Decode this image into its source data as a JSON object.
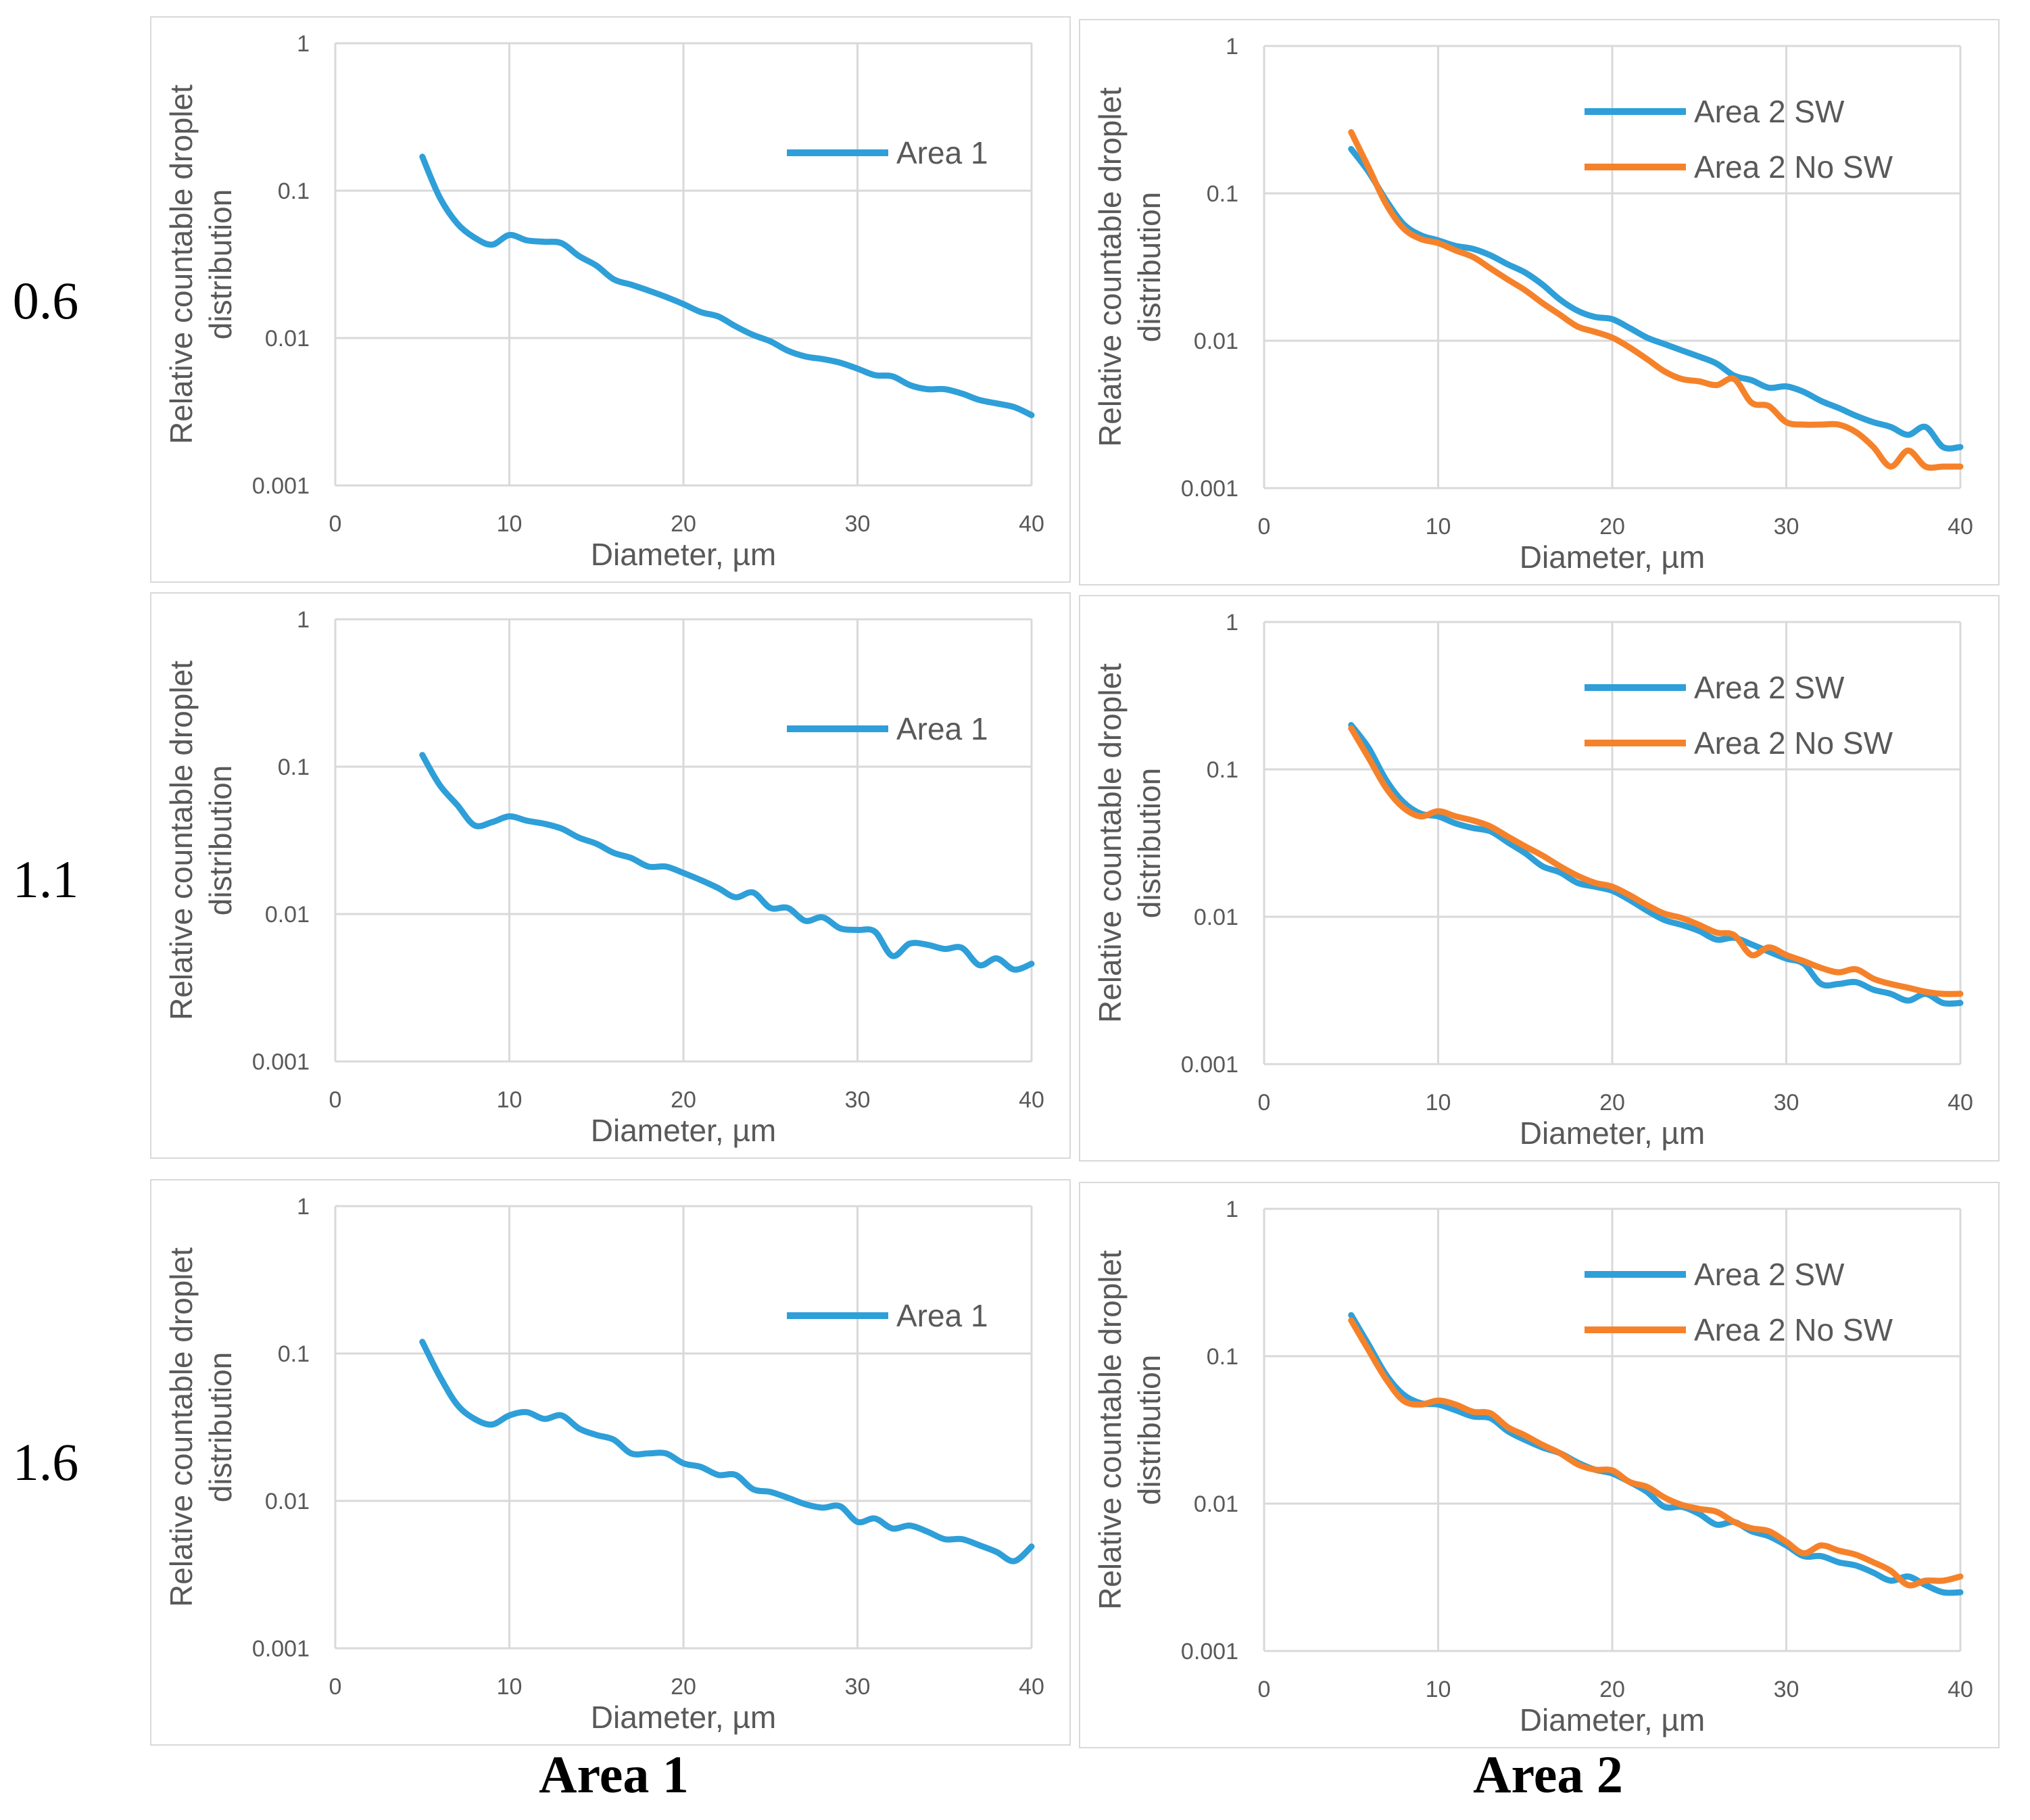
{
  "row_labels": [
    "0.6",
    "1.1",
    "1.6"
  ],
  "column_labels": [
    "Area 1",
    "Area 2"
  ],
  "colors": {
    "area1": "#2e9fd8",
    "area2_sw": "#2e9fd8",
    "area2_nosw": "#f5822a",
    "grid": "#d9d9d9"
  },
  "chart_data": [
    {
      "id": "r0c0",
      "type": "line",
      "xlabel": "Diameter, µm",
      "ylabel": "Relative countable droplet distribution",
      "xlim": [
        0,
        40
      ],
      "ylim": [
        0.001,
        1
      ],
      "yscale": "log",
      "xticks": [
        "0",
        "10",
        "20",
        "30",
        "40"
      ],
      "yticks": [
        "1",
        "0.1",
        "0.01",
        "0.001"
      ],
      "legend_position": "top-right",
      "series": [
        {
          "name": "Area 1",
          "x": [
            5,
            6,
            7,
            8,
            9,
            10,
            11,
            12,
            13,
            14,
            15,
            16,
            17,
            18,
            19,
            20,
            21,
            22,
            23,
            24,
            25,
            26,
            27,
            28,
            29,
            30,
            31,
            32,
            33,
            34,
            35,
            36,
            37,
            38,
            39,
            40
          ],
          "values": [
            0.17,
            0.09,
            0.06,
            0.048,
            0.043,
            0.05,
            0.046,
            0.045,
            0.044,
            0.036,
            0.031,
            0.025,
            0.023,
            0.021,
            0.019,
            0.017,
            0.015,
            0.014,
            0.012,
            0.0105,
            0.0095,
            0.0082,
            0.0075,
            0.0072,
            0.0068,
            0.0062,
            0.0056,
            0.0055,
            0.0048,
            0.0045,
            0.0045,
            0.0042,
            0.0038,
            0.0036,
            0.0034,
            0.003
          ]
        }
      ]
    },
    {
      "id": "r0c1",
      "type": "line",
      "xlabel": "Diameter, µm",
      "ylabel": "Relative countable droplet distribution",
      "xlim": [
        0,
        40
      ],
      "ylim": [
        0.001,
        1
      ],
      "yscale": "log",
      "xticks": [
        "0",
        "10",
        "20",
        "30",
        "40"
      ],
      "yticks": [
        "1",
        "0.1",
        "0.01",
        "0.001"
      ],
      "legend_position": "top-right",
      "series": [
        {
          "name": "Area 2 SW",
          "x": [
            5,
            6,
            7,
            8,
            9,
            10,
            11,
            12,
            13,
            14,
            15,
            16,
            17,
            18,
            19,
            20,
            21,
            22,
            23,
            24,
            25,
            26,
            27,
            28,
            29,
            30,
            31,
            32,
            33,
            34,
            35,
            36,
            37,
            38,
            39,
            40
          ],
          "values": [
            0.2,
            0.14,
            0.09,
            0.062,
            0.052,
            0.048,
            0.044,
            0.042,
            0.038,
            0.033,
            0.029,
            0.024,
            0.019,
            0.016,
            0.0145,
            0.014,
            0.0122,
            0.0105,
            0.0095,
            0.0086,
            0.0078,
            0.007,
            0.0058,
            0.0054,
            0.0048,
            0.0049,
            0.0045,
            0.0039,
            0.0035,
            0.0031,
            0.0028,
            0.0026,
            0.0023,
            0.0026,
            0.0019,
            0.0019
          ]
        },
        {
          "name": "Area 2 No SW",
          "x": [
            5,
            6,
            7,
            8,
            9,
            10,
            11,
            12,
            13,
            14,
            15,
            16,
            17,
            18,
            19,
            20,
            21,
            22,
            23,
            24,
            25,
            26,
            27,
            28,
            29,
            30,
            31,
            32,
            33,
            34,
            35,
            36,
            37,
            38,
            39,
            40
          ],
          "values": [
            0.26,
            0.15,
            0.085,
            0.058,
            0.049,
            0.046,
            0.041,
            0.037,
            0.031,
            0.026,
            0.022,
            0.018,
            0.015,
            0.0125,
            0.0115,
            0.0105,
            0.009,
            0.0075,
            0.0062,
            0.0055,
            0.0053,
            0.005,
            0.0055,
            0.0038,
            0.0036,
            0.0028,
            0.0027,
            0.0027,
            0.0027,
            0.0024,
            0.0019,
            0.0014,
            0.0018,
            0.0014,
            0.0014,
            0.0014
          ]
        }
      ]
    },
    {
      "id": "r1c0",
      "type": "line",
      "xlabel": "Diameter, µm",
      "ylabel": "Relative countable droplet distribution",
      "xlim": [
        0,
        40
      ],
      "ylim": [
        0.001,
        1
      ],
      "yscale": "log",
      "xticks": [
        "0",
        "10",
        "20",
        "30",
        "40"
      ],
      "yticks": [
        "1",
        "0.1",
        "0.01",
        "0.001"
      ],
      "legend_position": "top-right",
      "series": [
        {
          "name": "Area 1",
          "x": [
            5,
            6,
            7,
            8,
            9,
            10,
            11,
            12,
            13,
            14,
            15,
            16,
            17,
            18,
            19,
            20,
            21,
            22,
            23,
            24,
            25,
            26,
            27,
            28,
            29,
            30,
            31,
            32,
            33,
            34,
            35,
            36,
            37,
            38,
            39,
            40
          ],
          "values": [
            0.12,
            0.075,
            0.055,
            0.04,
            0.042,
            0.046,
            0.043,
            0.041,
            0.038,
            0.033,
            0.03,
            0.026,
            0.024,
            0.021,
            0.021,
            0.019,
            0.017,
            0.015,
            0.013,
            0.014,
            0.011,
            0.011,
            0.009,
            0.0095,
            0.008,
            0.0078,
            0.0076,
            0.0052,
            0.0063,
            0.0062,
            0.0058,
            0.0059,
            0.0045,
            0.005,
            0.0042,
            0.0046
          ]
        }
      ]
    },
    {
      "id": "r1c1",
      "type": "line",
      "xlabel": "Diameter, µm",
      "ylabel": "Relative countable droplet distribution",
      "xlim": [
        0,
        40
      ],
      "ylim": [
        0.001,
        1
      ],
      "yscale": "log",
      "xticks": [
        "0",
        "10",
        "20",
        "30",
        "40"
      ],
      "yticks": [
        "1",
        "0.1",
        "0.01",
        "0.001"
      ],
      "legend_position": "top-right",
      "series": [
        {
          "name": "Area 2 SW",
          "x": [
            5,
            6,
            7,
            8,
            9,
            10,
            11,
            12,
            13,
            14,
            15,
            16,
            17,
            18,
            19,
            20,
            21,
            22,
            23,
            24,
            25,
            26,
            27,
            28,
            29,
            30,
            31,
            32,
            33,
            34,
            35,
            36,
            37,
            38,
            39,
            40
          ],
          "values": [
            0.2,
            0.14,
            0.085,
            0.06,
            0.05,
            0.048,
            0.043,
            0.04,
            0.038,
            0.032,
            0.027,
            0.022,
            0.02,
            0.017,
            0.016,
            0.015,
            0.013,
            0.011,
            0.0095,
            0.0088,
            0.008,
            0.007,
            0.0072,
            0.0065,
            0.0058,
            0.0052,
            0.0048,
            0.0035,
            0.0035,
            0.0036,
            0.0032,
            0.003,
            0.0027,
            0.003,
            0.0026,
            0.0026
          ]
        },
        {
          "name": "Area 2 No SW",
          "x": [
            5,
            6,
            7,
            8,
            9,
            10,
            11,
            12,
            13,
            14,
            15,
            16,
            17,
            18,
            19,
            20,
            21,
            22,
            23,
            24,
            25,
            26,
            27,
            28,
            29,
            30,
            31,
            32,
            33,
            34,
            35,
            36,
            37,
            38,
            39,
            40
          ],
          "values": [
            0.19,
            0.12,
            0.075,
            0.055,
            0.048,
            0.052,
            0.048,
            0.045,
            0.041,
            0.035,
            0.03,
            0.026,
            0.022,
            0.019,
            0.017,
            0.016,
            0.014,
            0.012,
            0.0105,
            0.0098,
            0.0088,
            0.0078,
            0.0075,
            0.0055,
            0.0062,
            0.0055,
            0.005,
            0.0045,
            0.0042,
            0.0044,
            0.0038,
            0.0035,
            0.0033,
            0.0031,
            0.003,
            0.003
          ]
        }
      ]
    },
    {
      "id": "r2c0",
      "type": "line",
      "xlabel": "Diameter, µm",
      "ylabel": "Relative countable droplet distribution",
      "xlim": [
        0,
        40
      ],
      "ylim": [
        0.001,
        1
      ],
      "yscale": "log",
      "xticks": [
        "0",
        "10",
        "20",
        "30",
        "40"
      ],
      "yticks": [
        "1",
        "0.1",
        "0.01",
        "0.001"
      ],
      "legend_position": "top-right",
      "series": [
        {
          "name": "Area 1",
          "x": [
            5,
            6,
            7,
            8,
            9,
            10,
            11,
            12,
            13,
            14,
            15,
            16,
            17,
            18,
            19,
            20,
            21,
            22,
            23,
            24,
            25,
            26,
            27,
            28,
            29,
            30,
            31,
            32,
            33,
            34,
            35,
            36,
            37,
            38,
            39,
            40
          ],
          "values": [
            0.12,
            0.07,
            0.045,
            0.036,
            0.033,
            0.038,
            0.04,
            0.036,
            0.038,
            0.031,
            0.028,
            0.026,
            0.021,
            0.021,
            0.021,
            0.018,
            0.017,
            0.015,
            0.015,
            0.012,
            0.0115,
            0.0105,
            0.0095,
            0.009,
            0.0092,
            0.0072,
            0.0076,
            0.0065,
            0.0068,
            0.0062,
            0.0055,
            0.0055,
            0.005,
            0.0045,
            0.0039,
            0.0049
          ]
        }
      ]
    },
    {
      "id": "r2c1",
      "type": "line",
      "xlabel": "Diameter, µm",
      "ylabel": "Relative countable droplet distribution",
      "xlim": [
        0,
        40
      ],
      "ylim": [
        0.001,
        1
      ],
      "yscale": "log",
      "xticks": [
        "0",
        "10",
        "20",
        "30",
        "40"
      ],
      "yticks": [
        "1",
        "0.1",
        "0.01",
        "0.001"
      ],
      "legend_position": "top-right",
      "series": [
        {
          "name": "Area 2 SW",
          "x": [
            5,
            6,
            7,
            8,
            9,
            10,
            11,
            12,
            13,
            14,
            15,
            16,
            17,
            18,
            19,
            20,
            21,
            22,
            23,
            24,
            25,
            26,
            27,
            28,
            29,
            30,
            31,
            32,
            33,
            34,
            35,
            36,
            37,
            38,
            39,
            40
          ],
          "values": [
            0.19,
            0.12,
            0.075,
            0.055,
            0.048,
            0.047,
            0.043,
            0.039,
            0.038,
            0.031,
            0.027,
            0.024,
            0.022,
            0.019,
            0.017,
            0.016,
            0.014,
            0.012,
            0.0095,
            0.0095,
            0.0085,
            0.0072,
            0.0075,
            0.0065,
            0.006,
            0.0052,
            0.0044,
            0.0044,
            0.004,
            0.0038,
            0.0034,
            0.003,
            0.0032,
            0.0028,
            0.0025,
            0.0025
          ]
        },
        {
          "name": "Area 2 No SW",
          "x": [
            5,
            6,
            7,
            8,
            9,
            10,
            11,
            12,
            13,
            14,
            15,
            16,
            17,
            18,
            19,
            20,
            21,
            22,
            23,
            24,
            25,
            26,
            27,
            28,
            29,
            30,
            31,
            32,
            33,
            34,
            35,
            36,
            37,
            38,
            39,
            40
          ],
          "values": [
            0.175,
            0.11,
            0.07,
            0.05,
            0.047,
            0.05,
            0.047,
            0.042,
            0.041,
            0.033,
            0.029,
            0.025,
            0.022,
            0.0185,
            0.017,
            0.0168,
            0.014,
            0.013,
            0.011,
            0.0098,
            0.0092,
            0.0088,
            0.0075,
            0.0068,
            0.0065,
            0.0055,
            0.0046,
            0.0052,
            0.0048,
            0.0045,
            0.004,
            0.0035,
            0.0028,
            0.003,
            0.003,
            0.0032
          ]
        }
      ]
    }
  ]
}
